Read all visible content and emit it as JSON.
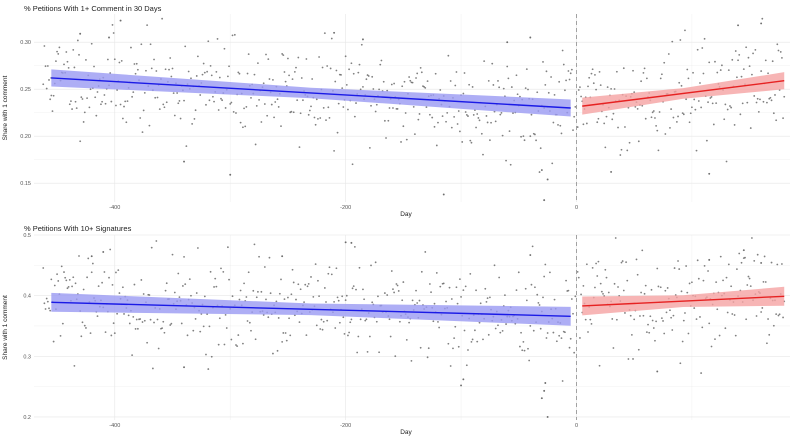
{
  "colors": {
    "pre_line": "#1a1ae6",
    "pre_ribbon": "#9a9af2",
    "post_line": "#e62222",
    "post_ribbon": "#f5a3a3",
    "points": "#555555",
    "grid": "#e6e6e6",
    "cutoff": "#999999"
  },
  "chart_data": [
    {
      "type": "scatter",
      "title": "% Petitions With 1+ Comment in 30 Days",
      "xlabel": "Day",
      "ylabel": "Share with 1 comment",
      "xlim": [
        -470,
        185
      ],
      "ylim": [
        0.13,
        0.33
      ],
      "x_ticks": [
        -400,
        -200,
        0,
        200
      ],
      "x_tick_labels": [
        "-400",
        "-200",
        "0",
        "200"
      ],
      "y_ticks": [
        0.15,
        0.2,
        0.25,
        0.3
      ],
      "y_tick_labels": [
        "0.15",
        "0.20",
        "0.25",
        "0.30"
      ],
      "cutoff_x": 0,
      "grid": true,
      "legend": "none",
      "fit_pre": {
        "x": [
          -455,
          -5
        ],
        "y": [
          0.262,
          0.23
        ],
        "band": 0.007
      },
      "fit_post": {
        "x": [
          5,
          180
        ],
        "y": [
          0.232,
          0.259
        ],
        "band": 0.007
      },
      "scatter_seed": 11,
      "scatter_noise": 0.026,
      "points": [
        {
          "x": -455,
          "y": 0.262
        },
        {
          "x": -430,
          "y": 0.309
        },
        {
          "x": -405,
          "y": 0.305
        },
        {
          "x": -395,
          "y": 0.323
        },
        {
          "x": -340,
          "y": 0.173
        },
        {
          "x": -300,
          "y": 0.159
        },
        {
          "x": -210,
          "y": 0.31
        },
        {
          "x": -185,
          "y": 0.303
        },
        {
          "x": -115,
          "y": 0.138
        },
        {
          "x": -60,
          "y": 0.3
        },
        {
          "x": -40,
          "y": 0.305
        },
        {
          "x": -30,
          "y": 0.164
        },
        {
          "x": -28,
          "y": 0.132
        },
        {
          "x": -25,
          "y": 0.154
        },
        {
          "x": 30,
          "y": 0.162
        },
        {
          "x": 115,
          "y": 0.16
        },
        {
          "x": 140,
          "y": 0.318
        },
        {
          "x": 160,
          "y": 0.32
        }
      ]
    },
    {
      "type": "scatter",
      "title": "% Petitions With 10+ Signatures",
      "xlabel": "Day",
      "ylabel": "Share with 1 comment",
      "xlim": [
        -470,
        185
      ],
      "ylim": [
        0.195,
        0.5
      ],
      "x_ticks": [
        -400,
        -200,
        0,
        200
      ],
      "x_tick_labels": [
        "-400",
        "-200",
        "0",
        "200"
      ],
      "y_ticks": [
        0.2,
        0.3,
        0.4,
        0.5
      ],
      "y_tick_labels": [
        "0.2",
        "0.3",
        "0.4",
        "0.5"
      ],
      "cutoff_x": 0,
      "grid": true,
      "legend": "none",
      "fit_pre": {
        "x": [
          -455,
          -5
        ],
        "y": [
          0.389,
          0.366
        ],
        "band": 0.012
      },
      "fit_post": {
        "x": [
          5,
          180
        ],
        "y": [
          0.383,
          0.399
        ],
        "band": 0.012
      },
      "scatter_seed": 29,
      "scatter_noise": 0.04,
      "points": [
        {
          "x": -420,
          "y": 0.465
        },
        {
          "x": -410,
          "y": 0.472
        },
        {
          "x": -340,
          "y": 0.282
        },
        {
          "x": -255,
          "y": 0.465
        },
        {
          "x": -200,
          "y": 0.488
        },
        {
          "x": -195,
          "y": 0.487
        },
        {
          "x": -100,
          "y": 0.252
        },
        {
          "x": -98,
          "y": 0.262
        },
        {
          "x": -40,
          "y": 0.467
        },
        {
          "x": -30,
          "y": 0.231
        },
        {
          "x": -28,
          "y": 0.243
        },
        {
          "x": -27,
          "y": 0.256
        },
        {
          "x": -25,
          "y": 0.2
        },
        {
          "x": 70,
          "y": 0.275
        },
        {
          "x": 115,
          "y": 0.459
        },
        {
          "x": 145,
          "y": 0.475
        },
        {
          "x": 160,
          "y": 0.454
        }
      ]
    }
  ]
}
